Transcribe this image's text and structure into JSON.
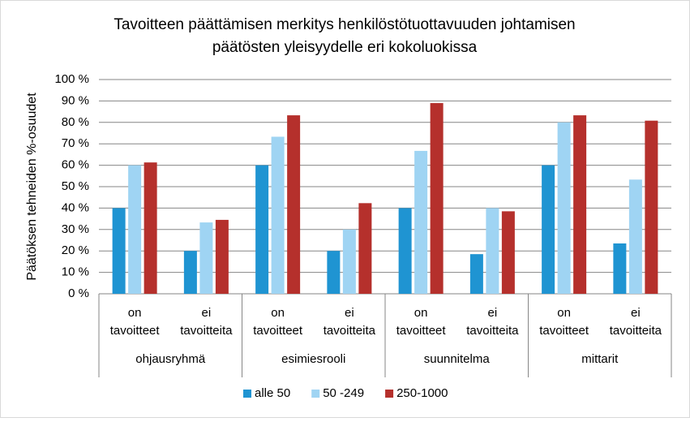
{
  "chart_data": {
    "type": "bar",
    "title": [
      "Tavoitteen päättämisen merkitys henkilöstötuottavuuden johtamisen",
      "päätösten yleisyydelle  eri kokoluokissa"
    ],
    "y_label": "Päätöksen tehneiden %-osuudet",
    "categories": [
      [
        "on",
        "tavoitteet"
      ],
      [
        "ei",
        "tavoitteita"
      ],
      [
        "on",
        "tavoitteet"
      ],
      [
        "ei",
        "tavoitteita"
      ],
      [
        "on",
        "tavoitteet"
      ],
      [
        "ei",
        "tavoitteita"
      ],
      [
        "on",
        "tavoitteet"
      ],
      [
        "ei",
        "tavoitteita"
      ]
    ],
    "groups": [
      "ohjausryhmä",
      "esimiesrooli",
      "suunnitelma",
      "mittarit"
    ],
    "series": [
      {
        "name": "alle 50",
        "color": "#1f94d2",
        "values": [
          40,
          20,
          60,
          20,
          40,
          18.5,
          60,
          23.5
        ]
      },
      {
        "name": "50 -249",
        "color": "#9fd4f3",
        "values": [
          60,
          33.3,
          73.3,
          30,
          66.7,
          40,
          80,
          53.3
        ]
      },
      {
        "name": "250-1000",
        "color": "#b5302c",
        "values": [
          61.3,
          34.5,
          83.3,
          42.3,
          89,
          38.5,
          83.3,
          80.8
        ]
      }
    ],
    "ylim": [
      0,
      100
    ],
    "yticks": [
      {
        "value": 0,
        "label": "0 %"
      },
      {
        "value": 10,
        "label": "10 %"
      },
      {
        "value": 20,
        "label": "20 %"
      },
      {
        "value": 30,
        "label": "30 %"
      },
      {
        "value": 40,
        "label": "40 %"
      },
      {
        "value": 50,
        "label": "50 %"
      },
      {
        "value": 60,
        "label": "60 %"
      },
      {
        "value": 70,
        "label": "70 %"
      },
      {
        "value": 80,
        "label": "80 %"
      },
      {
        "value": 90,
        "label": "90 %"
      },
      {
        "value": 100,
        "label": "100 %"
      }
    ],
    "grid": true,
    "legend": "bottom"
  }
}
